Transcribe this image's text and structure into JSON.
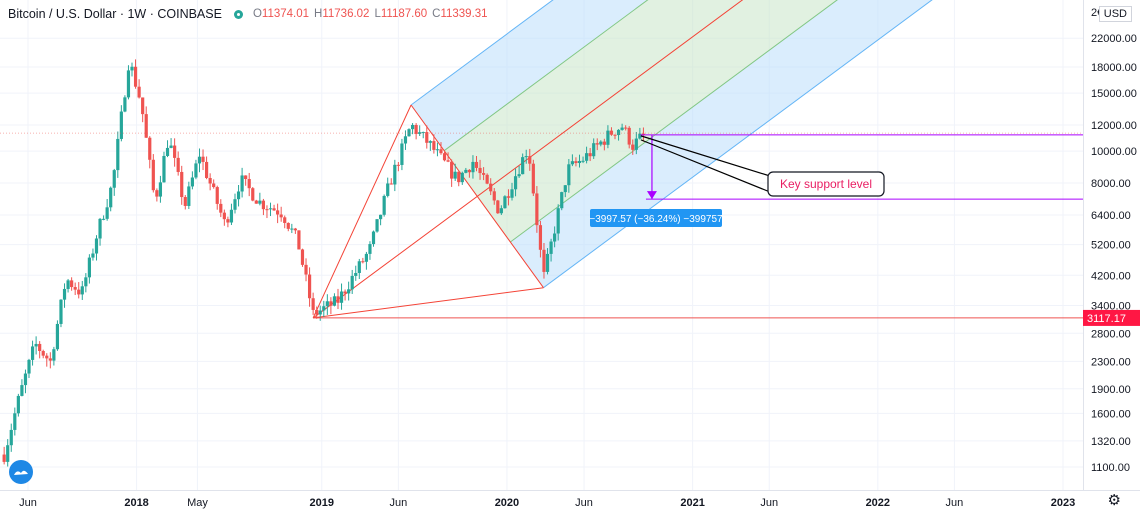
{
  "header": {
    "symbol": "Bitcoin / U.S. Dollar",
    "interval": "1W",
    "exchange": "COINBASE",
    "open_label": "O",
    "open": "11374.01",
    "high_label": "H",
    "high": "11736.02",
    "low_label": "L",
    "low": "11187.60",
    "close_label": "C",
    "close": "11339.31",
    "currency": "USD"
  },
  "price_tag": {
    "value": "3117.17",
    "color": "#ff1744"
  },
  "colors": {
    "up": "#26a69a",
    "down": "#ef5350",
    "fork_blue": "#bbdefb",
    "fork_green": "#c8e6c9",
    "median": "#f44336",
    "annotation": "#aa00ff"
  },
  "annotation": {
    "callout": "Key support level",
    "measure": "−3997.57 (−36.24%) −399757"
  },
  "chart_data": {
    "type": "candlestick",
    "title": "Bitcoin / U.S. Dollar, 1W, COINBASE",
    "y_scale": "log",
    "ylim": [
      1000,
      26000
    ],
    "y_ticks": [
      1100,
      1320,
      1600,
      1900,
      2300,
      2800,
      3400,
      4200,
      5200,
      6400,
      8000,
      10000,
      12000,
      15000,
      18000,
      22000
    ],
    "y_tick_labels": [
      "1100.00",
      "1320.00",
      "1600.00",
      "1900.00",
      "2300.00",
      "2800.00",
      "3400.00",
      "4200.00",
      "5200.00",
      "6400.00",
      "8000.00",
      "10000.00",
      "12000.00",
      "15000.00",
      "18000.00",
      "22000.00"
    ],
    "x_ticks": [
      {
        "date": "2017-06-01",
        "label": "Jun",
        "bold": false
      },
      {
        "date": "2018-01-01",
        "label": "2018",
        "bold": true
      },
      {
        "date": "2018-05-01",
        "label": "May",
        "bold": false
      },
      {
        "date": "2019-01-01",
        "label": "2019",
        "bold": true
      },
      {
        "date": "2019-06-01",
        "label": "Jun",
        "bold": false
      },
      {
        "date": "2020-01-01",
        "label": "2020",
        "bold": true
      },
      {
        "date": "2020-06-01",
        "label": "Jun",
        "bold": false
      },
      {
        "date": "2021-01-01",
        "label": "2021",
        "bold": true
      },
      {
        "date": "2021-06-01",
        "label": "Jun",
        "bold": false
      },
      {
        "date": "2022-01-01",
        "label": "2022",
        "bold": true
      },
      {
        "date": "2022-06-01",
        "label": "Jun",
        "bold": false
      },
      {
        "date": "2023-01-01",
        "label": "2023",
        "bold": true
      }
    ],
    "close_path": [
      [
        "2017-04-15",
        1200
      ],
      [
        "2017-05-15",
        1800
      ],
      [
        "2017-06-15",
        2600
      ],
      [
        "2017-07-15",
        2300
      ],
      [
        "2017-08-15",
        4100
      ],
      [
        "2017-09-15",
        3700
      ],
      [
        "2017-10-15",
        5600
      ],
      [
        "2017-11-15",
        8000
      ],
      [
        "2017-12-17",
        19000
      ],
      [
        "2018-01-10",
        14000
      ],
      [
        "2018-02-06",
        7000
      ],
      [
        "2018-03-05",
        11000
      ],
      [
        "2018-04-06",
        6800
      ],
      [
        "2018-05-05",
        9800
      ],
      [
        "2018-06-24",
        6000
      ],
      [
        "2018-07-25",
        8200
      ],
      [
        "2018-09-01",
        7000
      ],
      [
        "2018-10-15",
        6500
      ],
      [
        "2018-11-15",
        5300
      ],
      [
        "2018-12-15",
        3200
      ],
      [
        "2019-02-01",
        3500
      ],
      [
        "2019-04-05",
        5000
      ],
      [
        "2019-05-15",
        8000
      ],
      [
        "2019-06-26",
        12000
      ],
      [
        "2019-08-01",
        10500
      ],
      [
        "2019-09-25",
        8200
      ],
      [
        "2019-10-26",
        9300
      ],
      [
        "2019-12-17",
        6600
      ],
      [
        "2020-02-12",
        10300
      ],
      [
        "2020-03-13",
        4100
      ],
      [
        "2020-04-30",
        8800
      ],
      [
        "2020-06-01",
        9500
      ],
      [
        "2020-07-28",
        11500
      ],
      [
        "2020-08-15",
        11900
      ],
      [
        "2020-09-05",
        10400
      ],
      [
        "2020-10-01",
        11339
      ]
    ],
    "horizontal_lines": [
      {
        "price": 3117.17,
        "from": "2018-12-15",
        "color": "#ef5350"
      },
      {
        "price": 11200,
        "from": "2020-09-20",
        "color": "#aa00ff"
      },
      {
        "price": 7150,
        "from": "2020-10-01",
        "color": "#aa00ff"
      }
    ],
    "pitchfork": {
      "pivot1": [
        "2018-12-15",
        3117
      ],
      "pivot2": [
        "2019-06-26",
        13800
      ],
      "pivot3": [
        "2020-03-13",
        3850
      ]
    }
  }
}
